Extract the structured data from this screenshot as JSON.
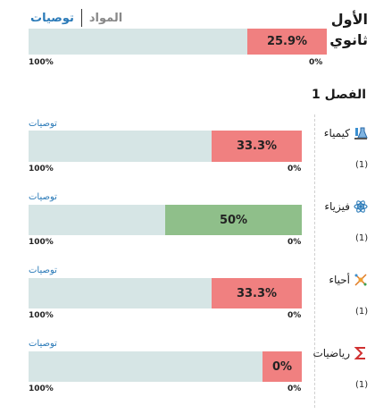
{
  "header": {
    "title_line1": "الأول",
    "title_line2": "ثانوي",
    "tab_materials": "المواد",
    "tab_recommendations": "توصيات"
  },
  "overall": {
    "percent_label": "25.9%",
    "percent": 25.9,
    "scale_left": "100%",
    "scale_right": "0%"
  },
  "section_title": "الفصل 1",
  "subjects": [
    {
      "name": "كيمياء",
      "icon": "chemistry-flask-icon",
      "reco": "توصيات",
      "percent_label": "33.3%",
      "percent": 33.3,
      "color": "#f08080",
      "scale_left": "100%",
      "scale_right": "0%",
      "count": "(1)"
    },
    {
      "name": "فيزياء",
      "icon": "physics-atom-icon",
      "reco": "توصيات",
      "percent_label": "50%",
      "percent": 50,
      "color": "#8fbf8a",
      "scale_left": "100%",
      "scale_right": "0%",
      "count": "(1)"
    },
    {
      "name": "أحياء",
      "icon": "biology-icon",
      "reco": "توصيات",
      "percent_label": "33.3%",
      "percent": 33.3,
      "color": "#f08080",
      "scale_left": "100%",
      "scale_right": "0%",
      "count": "(1)"
    },
    {
      "name": "رياضيات",
      "icon": "math-sigma-icon",
      "reco": "توصيات",
      "percent_label": "0%",
      "percent": 0,
      "color": "#f08080",
      "scale_left": "100%",
      "scale_right": "0%",
      "count": "(1)"
    }
  ],
  "colors": {
    "red": "#f08080",
    "green": "#8fbf8a",
    "track": "#d6e5e5",
    "link": "#2a7ab8"
  }
}
